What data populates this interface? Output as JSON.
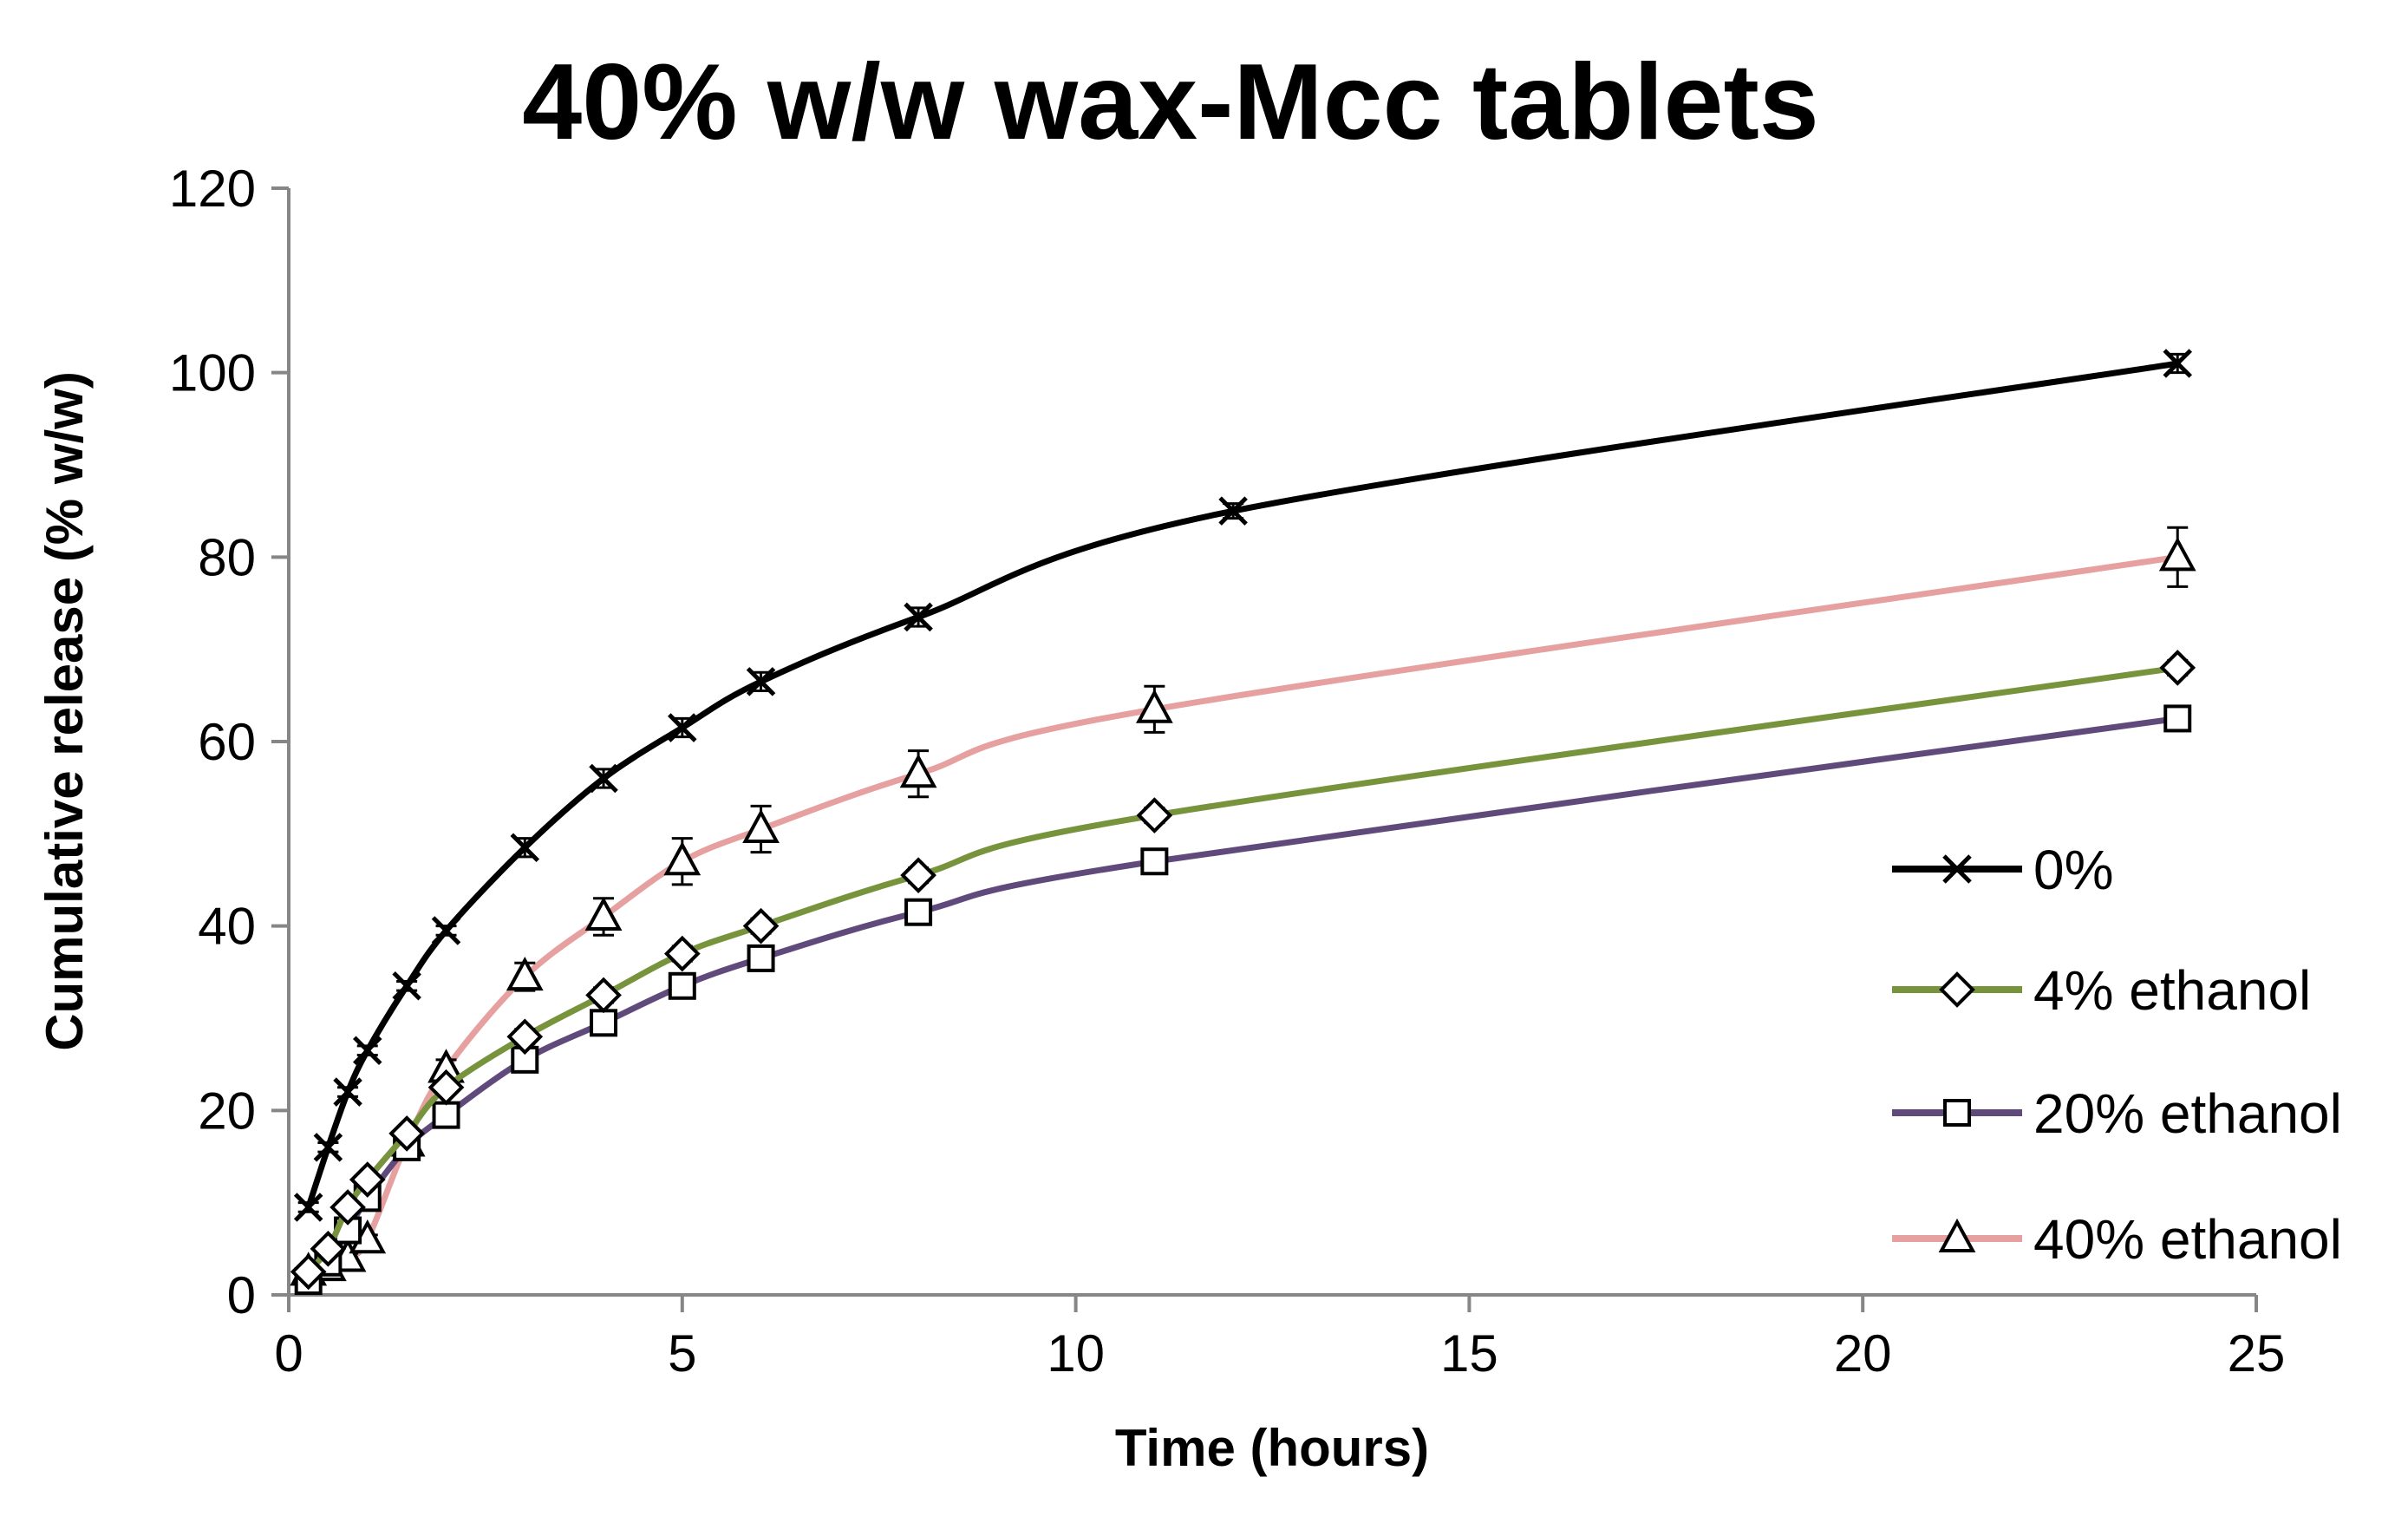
{
  "chart_data": {
    "type": "line",
    "title": "40% w/w wax-Mcc tablets",
    "xlabel": "Time (hours)",
    "ylabel": "Cumulative release (% w/w)",
    "xlim": [
      0,
      25
    ],
    "ylim": [
      0,
      120
    ],
    "xticks": [
      "0",
      "5",
      "10",
      "15",
      "20",
      "25"
    ],
    "yticks": [
      "0",
      "20",
      "40",
      "60",
      "80",
      "100",
      "120"
    ],
    "grid": false,
    "legend_position": "right",
    "series": [
      {
        "name": "0%",
        "color": "#000000",
        "marker": "x",
        "x": [
          0.25,
          0.5,
          0.75,
          1,
          1.5,
          2,
          3,
          4,
          5,
          6,
          8,
          12,
          24
        ],
        "y": [
          9.5,
          16,
          22,
          26.5,
          33.5,
          39.5,
          48.5,
          56,
          61.5,
          66.5,
          73.5,
          85,
          101
        ],
        "err": [
          0.5,
          0.5,
          0.5,
          0.5,
          0.5,
          0.5,
          1,
          1,
          1,
          1,
          1,
          0.8,
          1
        ]
      },
      {
        "name": "4% ethanol",
        "color": "#77933c",
        "marker": "diamond",
        "x": [
          0.25,
          0.5,
          0.75,
          1,
          1.5,
          2,
          3,
          4,
          5,
          6,
          8,
          11,
          24
        ],
        "y": [
          2.5,
          5,
          9.5,
          12.5,
          17.5,
          22.5,
          28,
          32.5,
          37,
          40,
          45.5,
          52,
          68
        ],
        "err": [
          0.5,
          0.5,
          0.5,
          0.5,
          0.5,
          0.5,
          0.8,
          0.8,
          0.8,
          0.8,
          0.8,
          0.8,
          0.8
        ]
      },
      {
        "name": "20% ethanol",
        "color": "#604a7b",
        "marker": "square",
        "x": [
          0.25,
          0.5,
          0.75,
          1,
          1.5,
          2,
          3,
          4,
          5,
          6,
          8,
          11,
          24
        ],
        "y": [
          1.5,
          3.5,
          7,
          10.5,
          16,
          19.5,
          25.5,
          29.5,
          33.5,
          36.5,
          41.5,
          47,
          62.5
        ],
        "err": [
          0.5,
          0.5,
          0.5,
          0.5,
          0.5,
          0.5,
          0.8,
          0.8,
          0.8,
          0.8,
          0.8,
          0.8,
          0.8
        ]
      },
      {
        "name": "40% ethanol",
        "color": "#e6a0a0",
        "marker": "triangle",
        "x": [
          0.25,
          0.5,
          0.75,
          1,
          1.5,
          2,
          3,
          4,
          5,
          6,
          8,
          11,
          24
        ],
        "y": [
          2.5,
          3,
          4,
          6,
          16.5,
          24.5,
          34.5,
          41,
          47,
          50.5,
          56.5,
          63.5,
          80
        ],
        "err": [
          0.5,
          0.5,
          0.5,
          0.5,
          0.8,
          1,
          1.5,
          2,
          2.5,
          2.5,
          2.5,
          2.5,
          3.2
        ]
      }
    ]
  }
}
